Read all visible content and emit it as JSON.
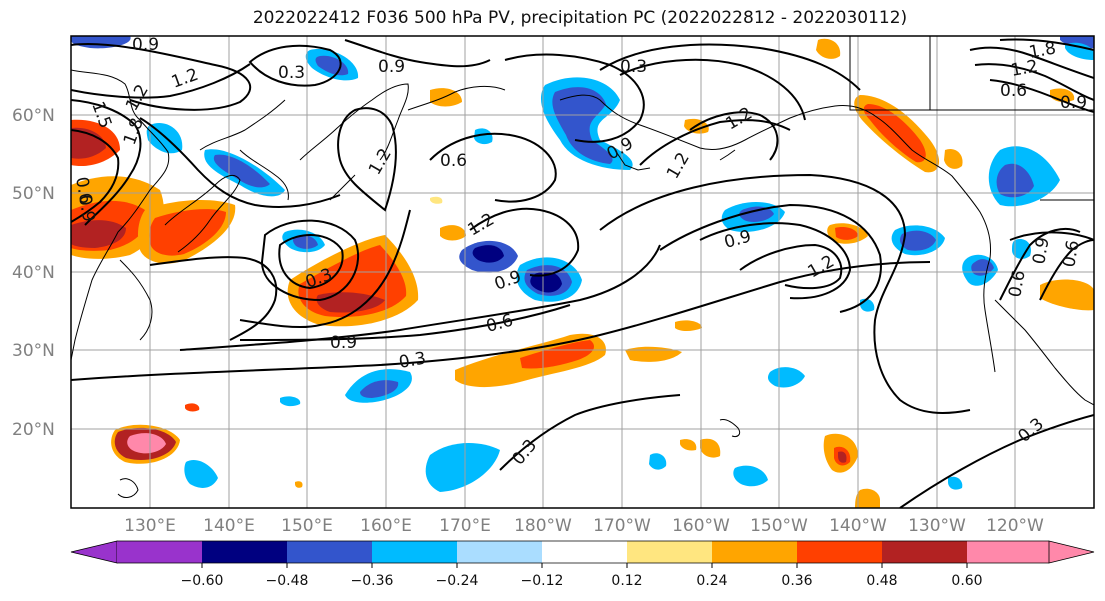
{
  "title": "2022022412 F036 500 hPa PV, precipitation PC (2022022812 - 2022030112)",
  "lat_labels": [
    "60°N",
    "50°N",
    "40°N",
    "30°N",
    "20°N"
  ],
  "lon_labels": [
    "130°E",
    "140°E",
    "150°E",
    "160°E",
    "170°E",
    "180°W",
    "170°W",
    "160°W",
    "150°W",
    "140°W",
    "130°W",
    "120°W"
  ],
  "colorbar": {
    "ticks": [
      "−0.60",
      "−0.48",
      "−0.36",
      "−0.24",
      "−0.12",
      "0.12",
      "0.24",
      "0.36",
      "0.48",
      "0.60"
    ],
    "colors": [
      "#9933cc",
      "#000080",
      "#3355cc",
      "#00bbff",
      "#aaddff",
      "#ffffff",
      "#ffe680",
      "#ffa500",
      "#ff4000",
      "#b22222",
      "#ff88aa"
    ]
  },
  "contour_labels": [
    "0.9",
    "0.3",
    "1.2",
    "0.9",
    "0.3",
    "0.9",
    "1.8",
    "1.2",
    "0.6",
    "0.9",
    "1.5",
    "1.2",
    "1.8",
    "0.6",
    "0.9",
    "1.2",
    "0.6",
    "1.2",
    "1.2",
    "0.6",
    "1.2",
    "0.3",
    "0.9",
    "0.9",
    "1.2",
    "0.6",
    "0.9",
    "0.3",
    "0.6",
    "0.9",
    "0.3",
    "0.3"
  ],
  "palette": {
    "grid": "#a0a0a0",
    "contour": "#000000",
    "coast": "#000000"
  }
}
